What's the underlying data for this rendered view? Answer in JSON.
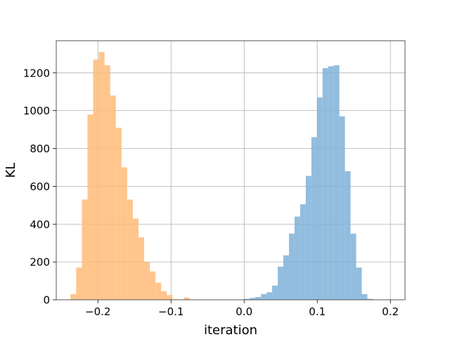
{
  "chart_data": {
    "type": "histogram",
    "xlabel": "iteration",
    "ylabel": "KL",
    "xlim": [
      -0.257,
      0.22
    ],
    "ylim": [
      0,
      1370
    ],
    "grid": true,
    "x_ticks": [
      -0.2,
      -0.1,
      0.0,
      0.1,
      0.2
    ],
    "x_tick_labels": [
      "−0.2",
      "−0.1",
      "0.0",
      "0.1",
      "0.2"
    ],
    "y_ticks": [
      0,
      200,
      400,
      600,
      800,
      1000,
      1200
    ],
    "y_tick_labels": [
      "0",
      "200",
      "400",
      "600",
      "800",
      "1000",
      "1200"
    ],
    "series": [
      {
        "color": "#ffbb78",
        "opacity": 0.85,
        "bin_start": -0.2375,
        "bin_width": 0.00775,
        "counts": [
          30,
          170,
          530,
          980,
          1270,
          1310,
          1240,
          1080,
          910,
          700,
          530,
          430,
          330,
          200,
          150,
          90,
          45,
          25,
          3,
          0,
          12
        ]
      },
      {
        "color": "#7fb2d8",
        "opacity": 0.85,
        "bin_start": 0.0,
        "bin_width": 0.00766,
        "counts": [
          5,
          10,
          15,
          30,
          40,
          75,
          175,
          235,
          350,
          440,
          505,
          655,
          860,
          1070,
          1225,
          1235,
          1240,
          970,
          680,
          350,
          170,
          30,
          5
        ]
      }
    ]
  }
}
